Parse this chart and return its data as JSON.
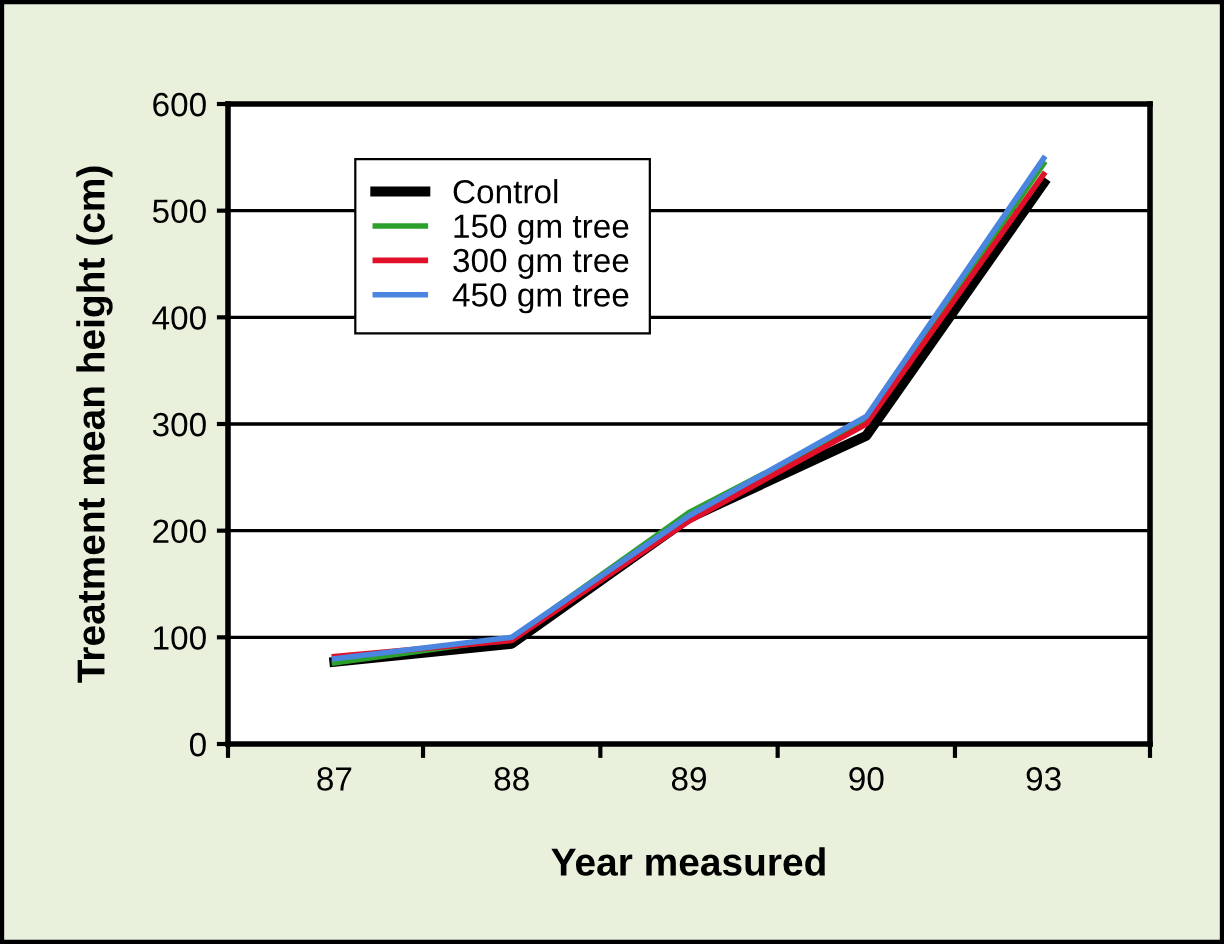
{
  "chart_data": {
    "type": "line",
    "xlabel": "Year measured",
    "ylabel": "Treatment mean height (cm)",
    "categories": [
      "87",
      "88",
      "89",
      "90",
      "93"
    ],
    "series": [
      {
        "name": "Control",
        "color": "#000000",
        "values": [
          77,
          94,
          212,
          289,
          526
        ]
      },
      {
        "name": "150 gm tree",
        "color": "#2ca02c",
        "values": [
          76,
          99,
          217,
          303,
          544
        ]
      },
      {
        "name": "300 gm tree",
        "color": "#e0102a",
        "values": [
          82,
          97,
          209,
          300,
          534
        ]
      },
      {
        "name": "450 gm tree",
        "color": "#4a86e0",
        "values": [
          80,
          100,
          214,
          307,
          549
        ]
      }
    ],
    "ylim": [
      0,
      600
    ],
    "yticks": [
      0,
      100,
      200,
      300,
      400,
      500,
      600
    ],
    "grid": "y",
    "legend": "top left",
    "marker": "none",
    "line_style": "solid"
  }
}
